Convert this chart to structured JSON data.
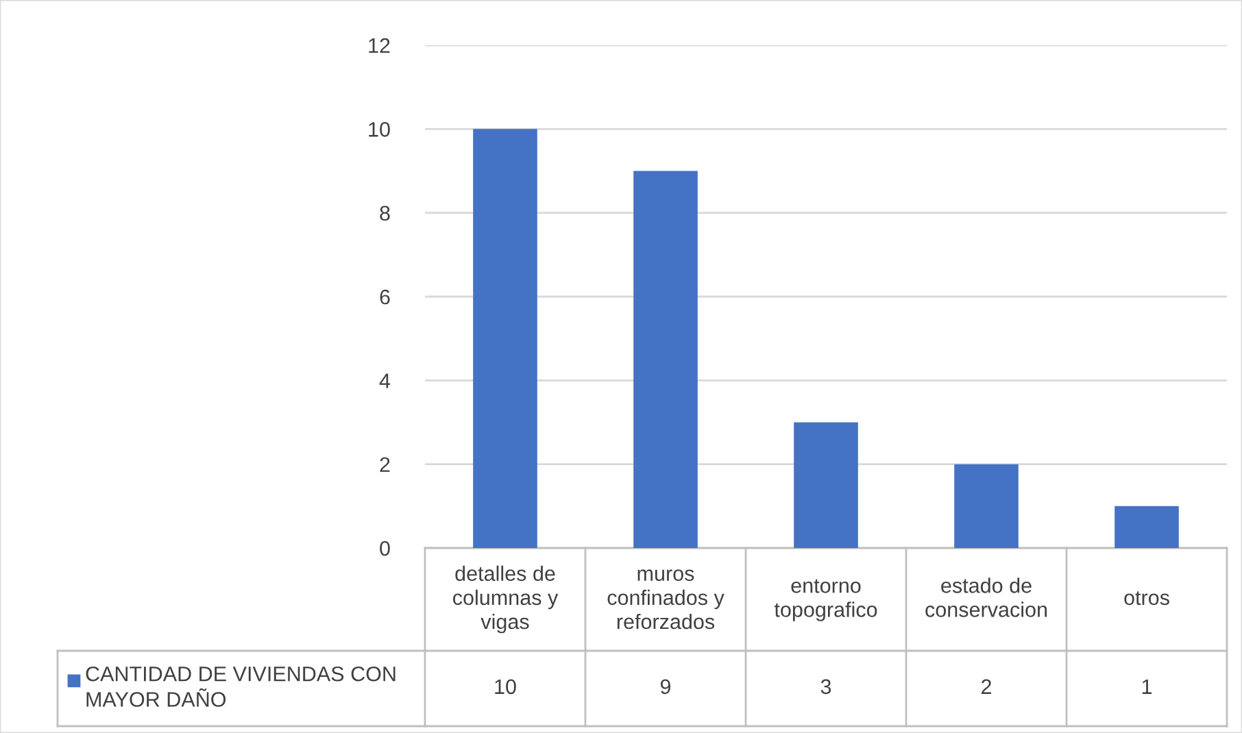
{
  "chart_data": {
    "type": "bar",
    "categories": [
      "detalles de\ncolumnas y\nvigas",
      "muros\nconfinados y\nreforzados",
      "entorno\ntopografico",
      "estado de\nconservacion",
      "otros"
    ],
    "series": [
      {
        "name": "CANTIDAD DE VIVIENDAS CON\nMAYOR DAÑO",
        "color": "#4472c4",
        "values": [
          10,
          9,
          3,
          2,
          1
        ]
      }
    ],
    "ylim": [
      0,
      12
    ],
    "yticks": [
      0,
      2,
      4,
      6,
      8,
      10,
      12
    ],
    "grid": "y",
    "data_labels": true
  }
}
